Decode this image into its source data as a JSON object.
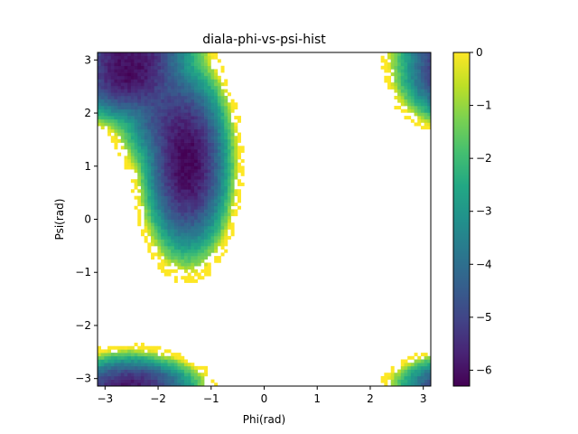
{
  "chart_data": {
    "type": "heatmap",
    "title": "diala-phi-vs-psi-hist",
    "xlabel": "Phi(rad)",
    "ylabel": "Psi(rad)",
    "xlim": [
      -3.1416,
      3.1416
    ],
    "ylim": [
      -3.1416,
      3.1416
    ],
    "xticks": [
      -3,
      -2,
      -1,
      0,
      1,
      2,
      3
    ],
    "yticks": [
      -3,
      -2,
      -1,
      0,
      1,
      2,
      3
    ],
    "bins": 100,
    "colormap": "viridis",
    "colorbar": {
      "range": [
        -6.3,
        0
      ],
      "ticks": [
        0,
        -1,
        -2,
        -3,
        -4,
        -5,
        -6
      ]
    },
    "regions": [
      {
        "phi": -2.55,
        "psi": 2.75,
        "value_min": -6.1,
        "phi_sigma": 0.4,
        "psi_sigma": 0.32
      },
      {
        "phi": -1.45,
        "psi": 1.05,
        "value_min": -6.25,
        "phi_sigma": 0.28,
        "psi_sigma": 0.6
      },
      {
        "phi": -1.85,
        "psi": 1.95,
        "value_min": -4.8,
        "phi_sigma": 0.32,
        "psi_sigma": 0.4
      },
      {
        "phi": -2.5,
        "psi": -3.1,
        "value_min": -5.2,
        "phi_sigma": 0.45,
        "psi_sigma": 0.18
      },
      {
        "phi": 3.1,
        "psi": 2.8,
        "value_min": -0.6,
        "phi_sigma": 0.04,
        "psi_sigma": 0.25
      }
    ]
  }
}
